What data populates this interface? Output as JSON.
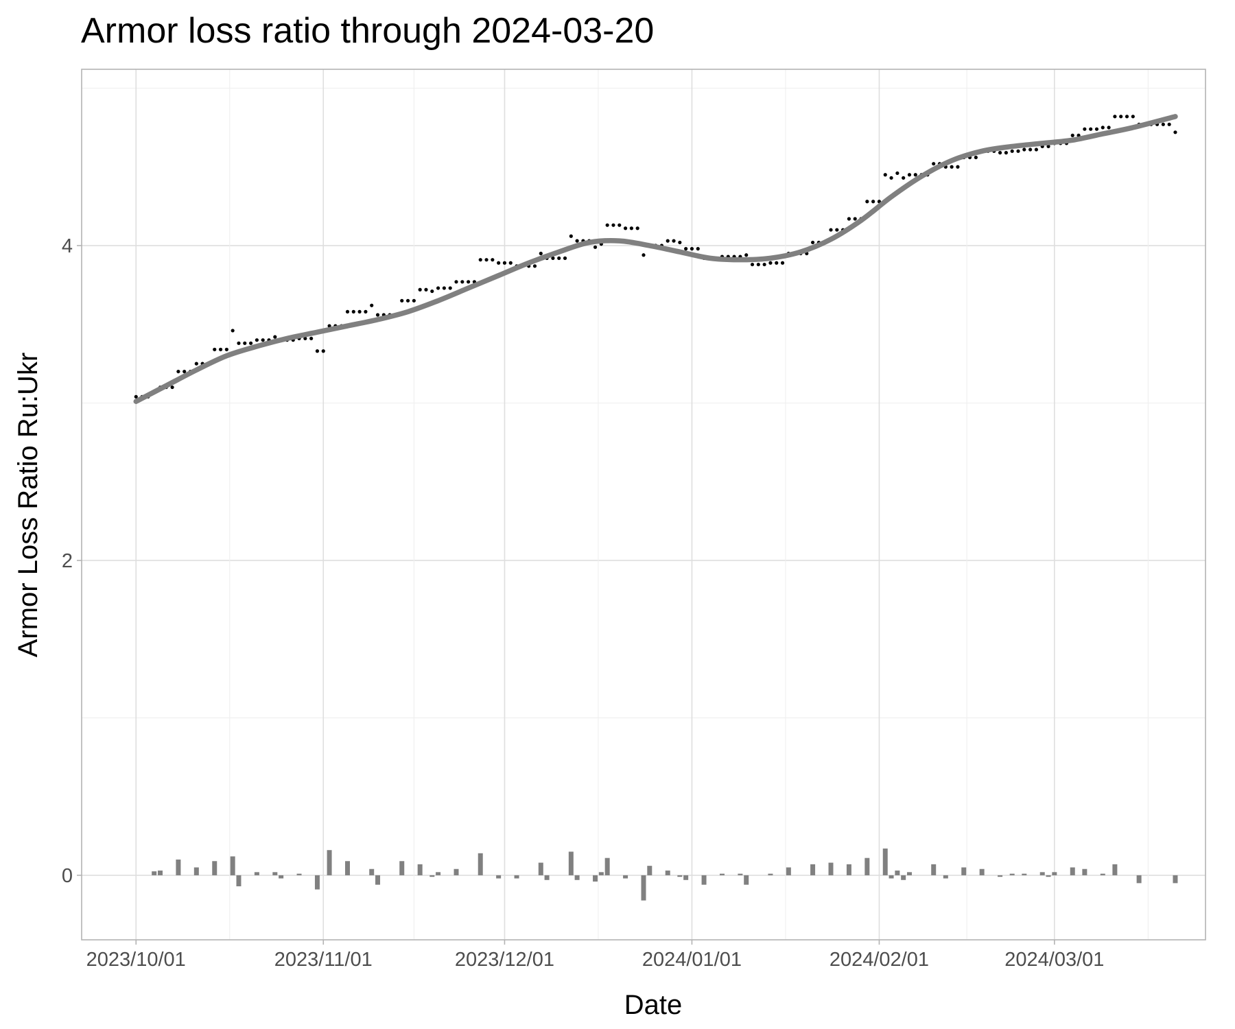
{
  "chart_data": {
    "type": "scatter",
    "title": "Armor loss ratio through 2024-03-20",
    "xlabel": "Date",
    "ylabel": "Armor Loss Ratio Ru:Ukr",
    "x_tick_labels": [
      "2023/10/01",
      "2023/11/01",
      "2023/12/01",
      "2024/01/01",
      "2024/02/01",
      "2024/03/01"
    ],
    "x_ticks": [
      "2023-10-01",
      "2023-11-01",
      "2023-12-01",
      "2024-01-01",
      "2024-02-01",
      "2024-03-01"
    ],
    "y_ticks": [
      0,
      2,
      4
    ],
    "y_tick_labels": [
      "0",
      "2",
      "4"
    ],
    "xlim": [
      "2023-09-22",
      "2024-03-26"
    ],
    "ylim": [
      -0.41,
      5.12
    ],
    "grid": true,
    "legend": "none",
    "series": [
      {
        "kind": "points",
        "color": "#000000",
        "points": [
          [
            "2023-10-01",
            3.04
          ],
          [
            "2023-10-02",
            3.04
          ],
          [
            "2023-10-03",
            3.04
          ],
          [
            "2023-10-04",
            3.07
          ],
          [
            "2023-10-05",
            3.1
          ],
          [
            "2023-10-06",
            3.1
          ],
          [
            "2023-10-07",
            3.1
          ],
          [
            "2023-10-08",
            3.2
          ],
          [
            "2023-10-09",
            3.2
          ],
          [
            "2023-10-10",
            3.2
          ],
          [
            "2023-10-11",
            3.25
          ],
          [
            "2023-10-12",
            3.25
          ],
          [
            "2023-10-13",
            3.25
          ],
          [
            "2023-10-14",
            3.34
          ],
          [
            "2023-10-15",
            3.34
          ],
          [
            "2023-10-16",
            3.34
          ],
          [
            "2023-10-17",
            3.46
          ],
          [
            "2023-10-18",
            3.38
          ],
          [
            "2023-10-19",
            3.38
          ],
          [
            "2023-10-20",
            3.38
          ],
          [
            "2023-10-21",
            3.4
          ],
          [
            "2023-10-22",
            3.4
          ],
          [
            "2023-10-23",
            3.4
          ],
          [
            "2023-10-24",
            3.42
          ],
          [
            "2023-10-25",
            3.4
          ],
          [
            "2023-10-26",
            3.4
          ],
          [
            "2023-10-27",
            3.4
          ],
          [
            "2023-10-28",
            3.41
          ],
          [
            "2023-10-29",
            3.41
          ],
          [
            "2023-10-30",
            3.41
          ],
          [
            "2023-10-31",
            3.33
          ],
          [
            "2023-11-01",
            3.33
          ],
          [
            "2023-11-02",
            3.49
          ],
          [
            "2023-11-03",
            3.49
          ],
          [
            "2023-11-04",
            3.49
          ],
          [
            "2023-11-05",
            3.58
          ],
          [
            "2023-11-06",
            3.58
          ],
          [
            "2023-11-07",
            3.58
          ],
          [
            "2023-11-08",
            3.58
          ],
          [
            "2023-11-09",
            3.62
          ],
          [
            "2023-11-10",
            3.56
          ],
          [
            "2023-11-11",
            3.56
          ],
          [
            "2023-11-12",
            3.56
          ],
          [
            "2023-11-13",
            3.56
          ],
          [
            "2023-11-14",
            3.65
          ],
          [
            "2023-11-15",
            3.65
          ],
          [
            "2023-11-16",
            3.65
          ],
          [
            "2023-11-17",
            3.72
          ],
          [
            "2023-11-18",
            3.72
          ],
          [
            "2023-11-19",
            3.71
          ],
          [
            "2023-11-20",
            3.73
          ],
          [
            "2023-11-21",
            3.73
          ],
          [
            "2023-11-22",
            3.73
          ],
          [
            "2023-11-23",
            3.77
          ],
          [
            "2023-11-24",
            3.77
          ],
          [
            "2023-11-25",
            3.77
          ],
          [
            "2023-11-26",
            3.77
          ],
          [
            "2023-11-27",
            3.91
          ],
          [
            "2023-11-28",
            3.91
          ],
          [
            "2023-11-29",
            3.91
          ],
          [
            "2023-11-30",
            3.89
          ],
          [
            "2023-12-01",
            3.89
          ],
          [
            "2023-12-02",
            3.89
          ],
          [
            "2023-12-03",
            3.87
          ],
          [
            "2023-12-04",
            3.87
          ],
          [
            "2023-12-05",
            3.87
          ],
          [
            "2023-12-06",
            3.87
          ],
          [
            "2023-12-07",
            3.95
          ],
          [
            "2023-12-08",
            3.92
          ],
          [
            "2023-12-09",
            3.92
          ],
          [
            "2023-12-10",
            3.92
          ],
          [
            "2023-12-11",
            3.92
          ],
          [
            "2023-12-12",
            4.06
          ],
          [
            "2023-12-13",
            4.03
          ],
          [
            "2023-12-14",
            4.03
          ],
          [
            "2023-12-15",
            4.03
          ],
          [
            "2023-12-16",
            3.99
          ],
          [
            "2023-12-17",
            4.01
          ],
          [
            "2023-12-18",
            4.13
          ],
          [
            "2023-12-19",
            4.13
          ],
          [
            "2023-12-20",
            4.13
          ],
          [
            "2023-12-21",
            4.11
          ],
          [
            "2023-12-22",
            4.11
          ],
          [
            "2023-12-23",
            4.11
          ],
          [
            "2023-12-24",
            3.94
          ],
          [
            "2023-12-25",
            4.0
          ],
          [
            "2023-12-26",
            4.0
          ],
          [
            "2023-12-27",
            4.0
          ],
          [
            "2023-12-28",
            4.03
          ],
          [
            "2023-12-29",
            4.03
          ],
          [
            "2023-12-30",
            4.02
          ],
          [
            "2023-12-31",
            3.98
          ],
          [
            "2024-01-01",
            3.98
          ],
          [
            "2024-01-02",
            3.98
          ],
          [
            "2024-01-03",
            3.92
          ],
          [
            "2024-01-04",
            3.92
          ],
          [
            "2024-01-05",
            3.92
          ],
          [
            "2024-01-06",
            3.93
          ],
          [
            "2024-01-07",
            3.93
          ],
          [
            "2024-01-08",
            3.93
          ],
          [
            "2024-01-09",
            3.93
          ],
          [
            "2024-01-10",
            3.94
          ],
          [
            "2024-01-11",
            3.88
          ],
          [
            "2024-01-12",
            3.88
          ],
          [
            "2024-01-13",
            3.88
          ],
          [
            "2024-01-14",
            3.89
          ],
          [
            "2024-01-15",
            3.89
          ],
          [
            "2024-01-16",
            3.89
          ],
          [
            "2024-01-17",
            3.95
          ],
          [
            "2024-01-18",
            3.95
          ],
          [
            "2024-01-19",
            3.95
          ],
          [
            "2024-01-20",
            3.95
          ],
          [
            "2024-01-21",
            4.02
          ],
          [
            "2024-01-22",
            4.02
          ],
          [
            "2024-01-23",
            4.02
          ],
          [
            "2024-01-24",
            4.1
          ],
          [
            "2024-01-25",
            4.1
          ],
          [
            "2024-01-26",
            4.1
          ],
          [
            "2024-01-27",
            4.17
          ],
          [
            "2024-01-28",
            4.17
          ],
          [
            "2024-01-29",
            4.17
          ],
          [
            "2024-01-30",
            4.28
          ],
          [
            "2024-01-31",
            4.28
          ],
          [
            "2024-02-01",
            4.28
          ],
          [
            "2024-02-02",
            4.45
          ],
          [
            "2024-02-03",
            4.43
          ],
          [
            "2024-02-04",
            4.46
          ],
          [
            "2024-02-05",
            4.43
          ],
          [
            "2024-02-06",
            4.45
          ],
          [
            "2024-02-07",
            4.45
          ],
          [
            "2024-02-08",
            4.45
          ],
          [
            "2024-02-09",
            4.45
          ],
          [
            "2024-02-10",
            4.52
          ],
          [
            "2024-02-11",
            4.52
          ],
          [
            "2024-02-12",
            4.5
          ],
          [
            "2024-02-13",
            4.5
          ],
          [
            "2024-02-14",
            4.5
          ],
          [
            "2024-02-15",
            4.56
          ],
          [
            "2024-02-16",
            4.56
          ],
          [
            "2024-02-17",
            4.56
          ],
          [
            "2024-02-18",
            4.6
          ],
          [
            "2024-02-19",
            4.6
          ],
          [
            "2024-02-20",
            4.6
          ],
          [
            "2024-02-21",
            4.59
          ],
          [
            "2024-02-22",
            4.59
          ],
          [
            "2024-02-23",
            4.6
          ],
          [
            "2024-02-24",
            4.6
          ],
          [
            "2024-02-25",
            4.61
          ],
          [
            "2024-02-26",
            4.61
          ],
          [
            "2024-02-27",
            4.61
          ],
          [
            "2024-02-28",
            4.63
          ],
          [
            "2024-02-29",
            4.63
          ],
          [
            "2024-03-01",
            4.65
          ],
          [
            "2024-03-02",
            4.65
          ],
          [
            "2024-03-03",
            4.65
          ],
          [
            "2024-03-04",
            4.7
          ],
          [
            "2024-03-05",
            4.7
          ],
          [
            "2024-03-06",
            4.74
          ],
          [
            "2024-03-07",
            4.74
          ],
          [
            "2024-03-08",
            4.74
          ],
          [
            "2024-03-09",
            4.75
          ],
          [
            "2024-03-10",
            4.75
          ],
          [
            "2024-03-11",
            4.82
          ],
          [
            "2024-03-12",
            4.82
          ],
          [
            "2024-03-13",
            4.82
          ],
          [
            "2024-03-14",
            4.82
          ],
          [
            "2024-03-15",
            4.77
          ],
          [
            "2024-03-16",
            4.77
          ],
          [
            "2024-03-17",
            4.77
          ],
          [
            "2024-03-18",
            4.77
          ],
          [
            "2024-03-19",
            4.77
          ],
          [
            "2024-03-20",
            4.77
          ],
          [
            "2024-03-21",
            4.72
          ]
        ]
      },
      {
        "kind": "smooth-line",
        "color": "#808080",
        "points": [
          [
            "2023-10-01",
            3.01
          ],
          [
            "2023-10-06",
            3.11
          ],
          [
            "2023-10-11",
            3.21
          ],
          [
            "2023-10-16",
            3.3
          ],
          [
            "2023-10-21",
            3.36
          ],
          [
            "2023-10-26",
            3.41
          ],
          [
            "2023-10-31",
            3.45
          ],
          [
            "2023-11-05",
            3.49
          ],
          [
            "2023-11-10",
            3.53
          ],
          [
            "2023-11-15",
            3.58
          ],
          [
            "2023-11-20",
            3.65
          ],
          [
            "2023-11-25",
            3.73
          ],
          [
            "2023-11-30",
            3.81
          ],
          [
            "2023-12-05",
            3.89
          ],
          [
            "2023-12-10",
            3.96
          ],
          [
            "2023-12-15",
            4.02
          ],
          [
            "2023-12-20",
            4.03
          ],
          [
            "2023-12-25",
            4.0
          ],
          [
            "2023-12-30",
            3.96
          ],
          [
            "2024-01-04",
            3.92
          ],
          [
            "2024-01-09",
            3.91
          ],
          [
            "2024-01-14",
            3.92
          ],
          [
            "2024-01-19",
            3.96
          ],
          [
            "2024-01-24",
            4.04
          ],
          [
            "2024-01-29",
            4.16
          ],
          [
            "2024-02-03",
            4.31
          ],
          [
            "2024-02-08",
            4.44
          ],
          [
            "2024-02-13",
            4.54
          ],
          [
            "2024-02-18",
            4.6
          ],
          [
            "2024-02-23",
            4.63
          ],
          [
            "2024-02-28",
            4.65
          ],
          [
            "2024-03-04",
            4.67
          ],
          [
            "2024-03-09",
            4.71
          ],
          [
            "2024-03-14",
            4.75
          ],
          [
            "2024-03-21",
            4.82
          ]
        ]
      },
      {
        "kind": "bars",
        "color": "#808080",
        "points": [
          [
            "2023-10-04",
            0.025
          ],
          [
            "2023-10-05",
            0.03
          ],
          [
            "2023-10-08",
            0.1
          ],
          [
            "2023-10-11",
            0.05
          ],
          [
            "2023-10-14",
            0.09
          ],
          [
            "2023-10-17",
            0.12
          ],
          [
            "2023-10-18",
            -0.07
          ],
          [
            "2023-10-21",
            0.02
          ],
          [
            "2023-10-24",
            0.02
          ],
          [
            "2023-10-25",
            -0.02
          ],
          [
            "2023-10-28",
            0.01
          ],
          [
            "2023-10-31",
            -0.09
          ],
          [
            "2023-11-02",
            0.16
          ],
          [
            "2023-11-05",
            0.09
          ],
          [
            "2023-11-09",
            0.04
          ],
          [
            "2023-11-10",
            -0.06
          ],
          [
            "2023-11-14",
            0.09
          ],
          [
            "2023-11-17",
            0.07
          ],
          [
            "2023-11-19",
            -0.01
          ],
          [
            "2023-11-20",
            0.02
          ],
          [
            "2023-11-23",
            0.04
          ],
          [
            "2023-11-27",
            0.14
          ],
          [
            "2023-11-30",
            -0.02
          ],
          [
            "2023-12-03",
            -0.02
          ],
          [
            "2023-12-07",
            0.08
          ],
          [
            "2023-12-08",
            -0.03
          ],
          [
            "2023-12-12",
            0.15
          ],
          [
            "2023-12-13",
            -0.03
          ],
          [
            "2023-12-16",
            -0.04
          ],
          [
            "2023-12-17",
            0.02
          ],
          [
            "2023-12-18",
            0.11
          ],
          [
            "2023-12-21",
            -0.02
          ],
          [
            "2023-12-24",
            -0.16
          ],
          [
            "2023-12-25",
            0.06
          ],
          [
            "2023-12-28",
            0.03
          ],
          [
            "2023-12-30",
            -0.01
          ],
          [
            "2023-12-31",
            -0.03
          ],
          [
            "2024-01-03",
            -0.06
          ],
          [
            "2024-01-06",
            0.01
          ],
          [
            "2024-01-09",
            0.01
          ],
          [
            "2024-01-10",
            -0.06
          ],
          [
            "2024-01-14",
            0.01
          ],
          [
            "2024-01-17",
            0.05
          ],
          [
            "2024-01-21",
            0.07
          ],
          [
            "2024-01-24",
            0.08
          ],
          [
            "2024-01-27",
            0.07
          ],
          [
            "2024-01-30",
            0.11
          ],
          [
            "2024-02-02",
            0.17
          ],
          [
            "2024-02-03",
            -0.02
          ],
          [
            "2024-02-04",
            0.03
          ],
          [
            "2024-02-05",
            -0.03
          ],
          [
            "2024-02-06",
            0.02
          ],
          [
            "2024-02-10",
            0.07
          ],
          [
            "2024-02-12",
            -0.02
          ],
          [
            "2024-02-15",
            0.05
          ],
          [
            "2024-02-18",
            0.04
          ],
          [
            "2024-02-21",
            -0.01
          ],
          [
            "2024-02-23",
            0.01
          ],
          [
            "2024-02-25",
            0.01
          ],
          [
            "2024-02-28",
            0.02
          ],
          [
            "2024-02-29",
            -0.01
          ],
          [
            "2024-03-01",
            0.02
          ],
          [
            "2024-03-04",
            0.05
          ],
          [
            "2024-03-06",
            0.04
          ],
          [
            "2024-03-09",
            0.01
          ],
          [
            "2024-03-11",
            0.07
          ],
          [
            "2024-03-15",
            -0.05
          ],
          [
            "2024-03-21",
            -0.05
          ]
        ]
      }
    ]
  }
}
